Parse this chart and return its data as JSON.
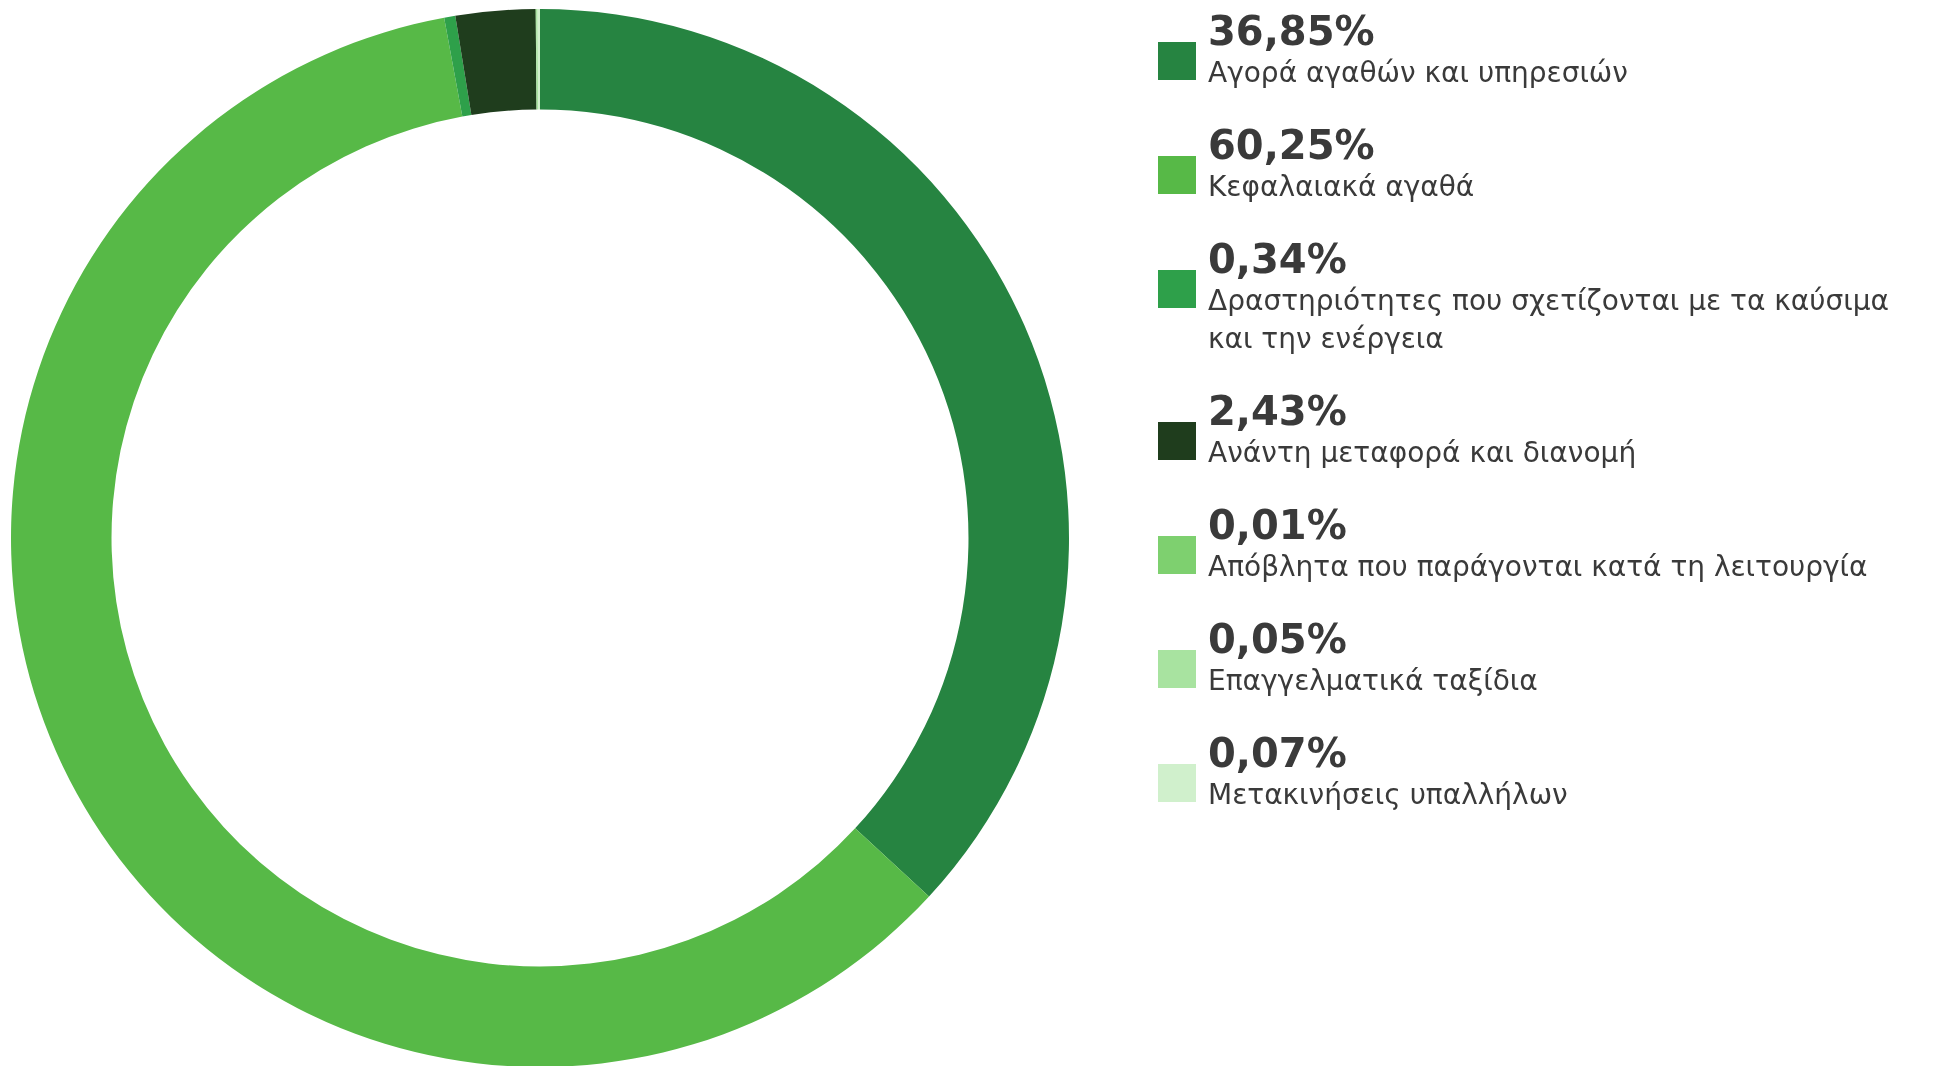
{
  "chart_data": {
    "type": "donut",
    "categories": [
      "Αγορά αγαθών και υπηρεσιών",
      "Κεφαλαιακά αγαθά",
      "Δραστηριότητες που σχετίζονται με τα καύσιμα και την ενέργεια",
      "Ανάντη μεταφορά και διανομή",
      "Απόβλητα που παράγονται κατά τη λειτουργία",
      "Επαγγελματικά ταξίδια",
      "Μετακινήσεις υπαλλήλων"
    ],
    "values": [
      36.85,
      60.25,
      0.34,
      2.43,
      0.01,
      0.05,
      0.07
    ],
    "value_labels": [
      "36,85%",
      "60,25%",
      "0,34%",
      "2,43%",
      "0,01%",
      "0,05%",
      "0,07%"
    ],
    "colors": [
      "#268441",
      "#57b947",
      "#2ea04a",
      "#1f3d1d",
      "#7ed06f",
      "#a8e3a0",
      "#d0f0cc"
    ],
    "legend": "right"
  }
}
